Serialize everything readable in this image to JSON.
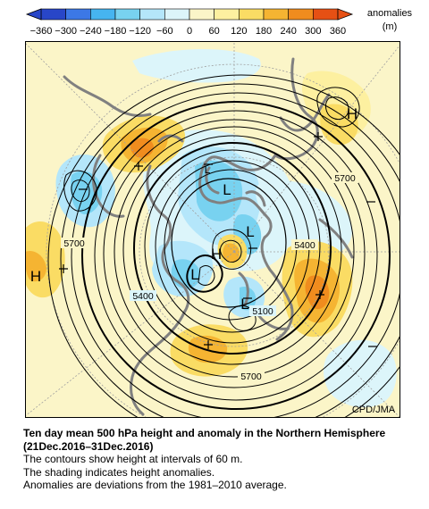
{
  "colorbar": {
    "ticks": [
      "−360",
      "−300",
      "−240",
      "−180",
      "−120",
      "−60",
      "0",
      "60",
      "120",
      "180",
      "240",
      "300",
      "360"
    ],
    "colors": [
      "#2846c8",
      "#3c78e6",
      "#46b4f0",
      "#78d2f0",
      "#b4e6fa",
      "#dcf5fa",
      "#fbf5c8",
      "#fdf0a0",
      "#fadc64",
      "#f5b432",
      "#f08c1e",
      "#e65014"
    ],
    "title": "anomalies",
    "unit": "(m)"
  },
  "map": {
    "contour_labels": [
      "5700",
      "5700",
      "5700",
      "5400",
      "5400",
      "5100"
    ],
    "centers": [
      "H",
      "H",
      "H",
      "L",
      "L",
      "L",
      "L",
      "L"
    ],
    "credit": "CPD/JMA"
  },
  "caption": {
    "title": "Ten day mean 500 hPa height and anomaly in the Northern Hemisphere (21Dec.2016–31Dec.2016)",
    "lines": [
      "The contours show height at intervals of 60 m.",
      "The shading indicates height anomalies.",
      "Anomalies are deviations from the 1981–2010 average."
    ]
  },
  "colors": {
    "background": "#fbf5c8",
    "land_outline": "#808080",
    "contour": "#000000"
  }
}
